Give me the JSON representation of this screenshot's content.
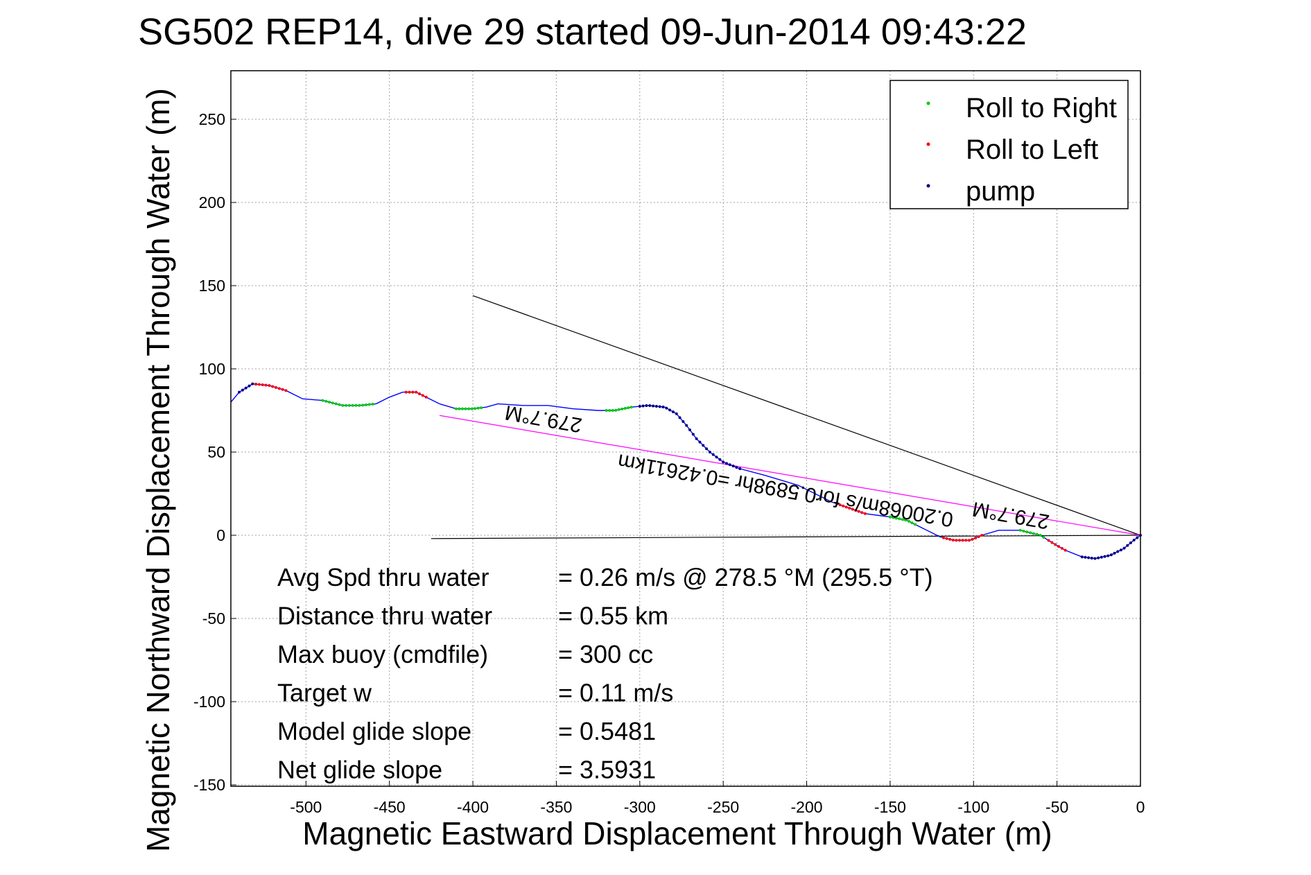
{
  "chart_data": {
    "type": "scatter",
    "title": "SG502 REP14, dive 29 started 09-Jun-2014 09:43:22",
    "xlabel": "Magnetic Eastward Displacement Through Water (m)",
    "ylabel": "Magnetic Northward Displacement Through Water (m)",
    "xlim": [
      -545,
      0
    ],
    "ylim": [
      -150,
      280
    ],
    "xticks": [
      -500,
      -450,
      -400,
      -350,
      -300,
      -250,
      -200,
      -150,
      -100,
      -50,
      0
    ],
    "yticks": [
      -150,
      -100,
      -50,
      0,
      50,
      100,
      150,
      200,
      250
    ],
    "grid": true,
    "legend_position": "top-right",
    "series": [
      {
        "name": "Roll to Right",
        "color": "#00cc00",
        "marker": "dot"
      },
      {
        "name": "Roll to Left",
        "color": "#ff0000",
        "marker": "dot"
      },
      {
        "name": "pump",
        "color": "#000080",
        "marker": "dot"
      }
    ],
    "track": {
      "color": "#0000ff",
      "points": [
        [
          -545,
          80
        ],
        [
          -540,
          86
        ],
        [
          -532,
          91
        ],
        [
          -522,
          90
        ],
        [
          -512,
          87
        ],
        [
          -502,
          82
        ],
        [
          -490,
          81
        ],
        [
          -478,
          78
        ],
        [
          -468,
          78
        ],
        [
          -458,
          79
        ],
        [
          -450,
          83
        ],
        [
          -442,
          86
        ],
        [
          -434,
          86
        ],
        [
          -426,
          82
        ],
        [
          -420,
          79
        ],
        [
          -410,
          76
        ],
        [
          -400,
          76
        ],
        [
          -392,
          77
        ],
        [
          -385,
          79
        ],
        [
          -370,
          78
        ],
        [
          -355,
          78
        ],
        [
          -340,
          76
        ],
        [
          -325,
          75
        ],
        [
          -315,
          75
        ],
        [
          -305,
          77
        ],
        [
          -295,
          78
        ],
        [
          -285,
          77
        ],
        [
          -278,
          73
        ],
        [
          -272,
          66
        ],
        [
          -266,
          58
        ],
        [
          -258,
          50
        ],
        [
          -250,
          44
        ],
        [
          -240,
          40
        ],
        [
          -225,
          36
        ],
        [
          -205,
          30
        ],
        [
          -185,
          20
        ],
        [
          -165,
          13
        ],
        [
          -150,
          11
        ],
        [
          -140,
          9
        ],
        [
          -130,
          4
        ],
        [
          -120,
          -1
        ],
        [
          -112,
          -3
        ],
        [
          -102,
          -3
        ],
        [
          -95,
          0
        ],
        [
          -85,
          3
        ],
        [
          -72,
          3
        ],
        [
          -60,
          0
        ],
        [
          -52,
          -5
        ],
        [
          -45,
          -9
        ],
        [
          -35,
          -13
        ],
        [
          -27,
          -14
        ],
        [
          -18,
          -12
        ],
        [
          -10,
          -8
        ],
        [
          -4,
          -3
        ],
        [
          0,
          0
        ]
      ]
    },
    "segments": [
      {
        "series": "pump",
        "x_range": [
          -540,
          -530
        ]
      },
      {
        "series": "Roll to Left",
        "x_range": [
          -530,
          -512
        ]
      },
      {
        "series": "Roll to Right",
        "x_range": [
          -490,
          -460
        ]
      },
      {
        "series": "Roll to Left",
        "x_range": [
          -440,
          -428
        ]
      },
      {
        "series": "Roll to Right",
        "x_range": [
          -410,
          -395
        ]
      },
      {
        "series": "Roll to Right",
        "x_range": [
          -320,
          -305
        ]
      },
      {
        "series": "pump",
        "x_range": [
          -300,
          -240
        ]
      },
      {
        "series": "Roll to Left",
        "x_range": [
          -180,
          -165
        ]
      },
      {
        "series": "Roll to Right",
        "x_range": [
          -150,
          -135
        ]
      },
      {
        "series": "Roll to Left",
        "x_range": [
          -118,
          -95
        ]
      },
      {
        "series": "Roll to Right",
        "x_range": [
          -72,
          -58
        ]
      },
      {
        "series": "Roll to Left",
        "x_range": [
          -55,
          -45
        ]
      },
      {
        "series": "pump",
        "x_range": [
          -35,
          0
        ]
      }
    ],
    "reference_lines": [
      {
        "color": "#000000",
        "from": [
          -400,
          144
        ],
        "to": [
          0,
          0
        ]
      },
      {
        "color": "#000000",
        "from": [
          -425,
          -2
        ],
        "to": [
          0,
          0
        ]
      },
      {
        "color": "#ff00ff",
        "from": [
          -420,
          72
        ],
        "to": [
          0,
          0
        ]
      }
    ],
    "annotations": [
      {
        "text": "279.7°M",
        "at": [
          -357,
          74
        ],
        "rotation_deg": 190
      },
      {
        "text": "0.20068m/s for0.5898hr =0.42611km",
        "at": [
          -212,
          31
        ],
        "rotation_deg": 190
      },
      {
        "text": "279.7°M",
        "at": [
          -77,
          16
        ],
        "rotation_deg": 190
      }
    ]
  },
  "stats": [
    {
      "label": "Avg Spd thru water",
      "value": "=  0.26 m/s @ 278.5 °M (295.5 °T)"
    },
    {
      "label": "Distance thru water",
      "value": "=  0.55 km"
    },
    {
      "label": "Max buoy (cmdfile)",
      "value": "= 300 cc"
    },
    {
      "label": "Target w",
      "value": "= 0.11 m/s"
    },
    {
      "label": "Model glide slope",
      "value": "= 0.5481"
    },
    {
      "label": "Net glide slope",
      "value": "= 3.5931"
    }
  ]
}
